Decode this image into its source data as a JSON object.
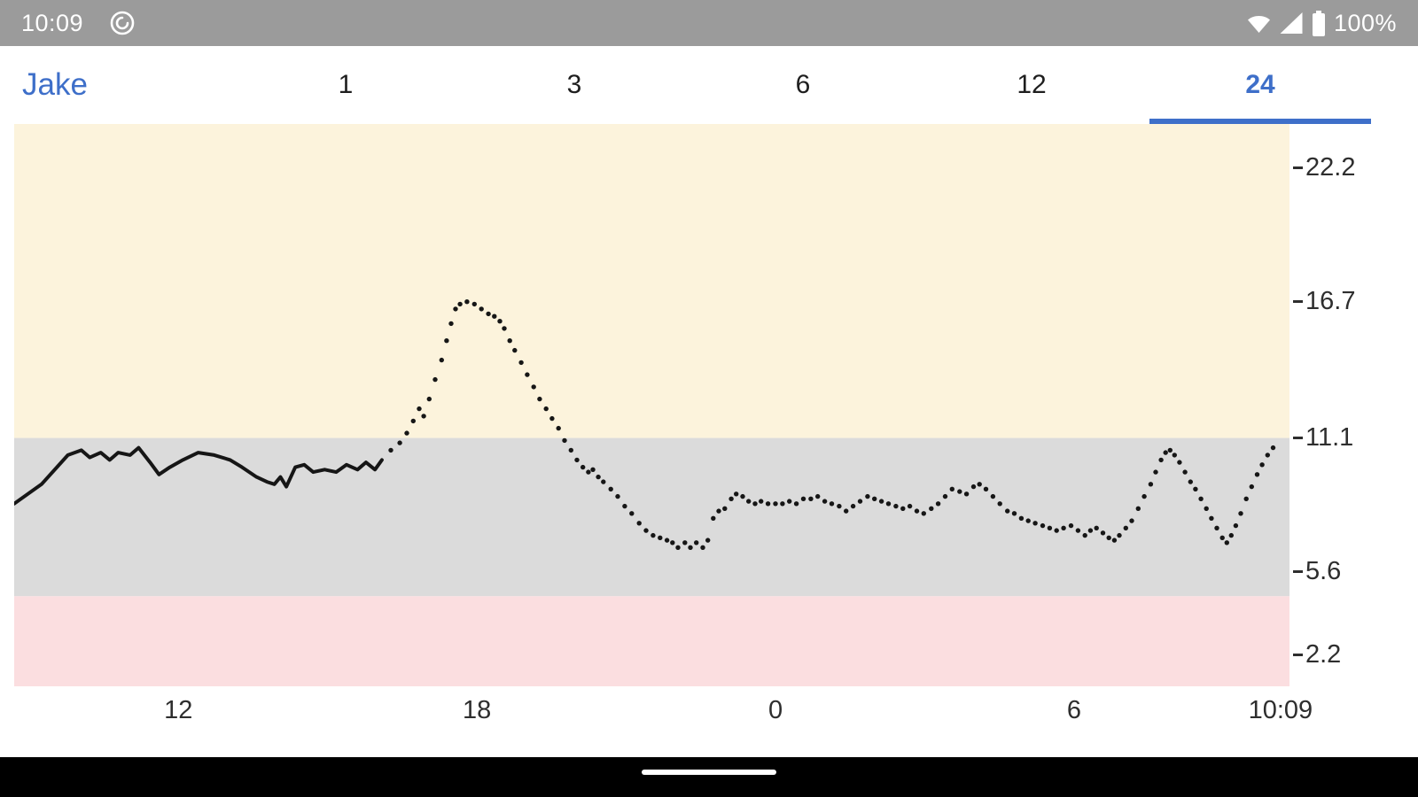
{
  "colors": {
    "accent": "#3e6fc9",
    "status_bar_bg": "#9b9b9b",
    "band_high": "#fcf3dc",
    "band_in_range": "#dbdbdb",
    "band_low": "#fbdee0",
    "series_color": "#161616",
    "nav_bar_bg": "#000000"
  },
  "status_bar": {
    "time": "10:09",
    "battery_percent": "100%",
    "icons": [
      "app-notification-icon",
      "wifi-icon",
      "cellular-signal-icon",
      "battery-icon"
    ]
  },
  "tab_bar": {
    "label": "Jake",
    "tabs": [
      {
        "label": "1",
        "selected": false
      },
      {
        "label": "3",
        "selected": false
      },
      {
        "label": "6",
        "selected": false
      },
      {
        "label": "12",
        "selected": false
      },
      {
        "label": "24",
        "selected": true
      }
    ]
  },
  "chart_data": {
    "type": "scatter",
    "title": "",
    "xlabel": "",
    "ylabel": "",
    "xlim": [
      8.7,
      34.33
    ],
    "ylim": [
      0.9,
      24.0
    ],
    "grid": false,
    "x_ticks": [
      {
        "t": 12,
        "label": "12"
      },
      {
        "t": 18,
        "label": "18"
      },
      {
        "t": 24,
        "label": "0"
      },
      {
        "t": 30,
        "label": "6"
      },
      {
        "t": 34.15,
        "label": "10:09"
      }
    ],
    "y_ticks": [
      22.2,
      16.7,
      11.1,
      5.6,
      2.2
    ],
    "bands": [
      {
        "name": "high",
        "from": 11.1,
        "to": 24.0,
        "color": "#fcf3dc"
      },
      {
        "name": "in-range",
        "from": 4.6,
        "to": 11.1,
        "color": "#dbdbdb"
      },
      {
        "name": "low",
        "from": 0.9,
        "to": 4.6,
        "color": "#fbdee0"
      }
    ],
    "series": [
      {
        "name": "glucose-history-line",
        "style": "line",
        "points": [
          [
            8.7,
            8.4
          ],
          [
            9.25,
            9.2
          ],
          [
            9.78,
            10.4
          ],
          [
            10.05,
            10.6
          ],
          [
            10.22,
            10.3
          ],
          [
            10.44,
            10.5
          ],
          [
            10.62,
            10.2
          ],
          [
            10.79,
            10.5
          ],
          [
            11.03,
            10.4
          ],
          [
            11.2,
            10.7
          ],
          [
            11.43,
            10.1
          ],
          [
            11.61,
            9.6
          ],
          [
            11.83,
            9.9
          ],
          [
            12.09,
            10.2
          ],
          [
            12.4,
            10.5
          ],
          [
            12.72,
            10.4
          ],
          [
            13.04,
            10.2
          ],
          [
            13.28,
            9.9
          ],
          [
            13.57,
            9.5
          ],
          [
            13.78,
            9.3
          ],
          [
            13.93,
            9.2
          ],
          [
            14.05,
            9.5
          ],
          [
            14.17,
            9.1
          ],
          [
            14.35,
            9.9
          ],
          [
            14.53,
            10.0
          ],
          [
            14.71,
            9.7
          ],
          [
            14.94,
            9.8
          ],
          [
            15.17,
            9.7
          ],
          [
            15.38,
            10.0
          ],
          [
            15.6,
            9.8
          ],
          [
            15.77,
            10.1
          ],
          [
            15.95,
            9.8
          ],
          [
            16.09,
            10.2
          ]
        ]
      },
      {
        "name": "glucose-readings",
        "style": "dots",
        "points": [
          [
            16.27,
            10.6
          ],
          [
            16.45,
            10.9
          ],
          [
            16.59,
            11.3
          ],
          [
            16.72,
            11.8
          ],
          [
            16.84,
            12.3
          ],
          [
            16.93,
            12.0
          ],
          [
            17.04,
            12.7
          ],
          [
            17.16,
            13.5
          ],
          [
            17.29,
            14.3
          ],
          [
            17.39,
            15.1
          ],
          [
            17.48,
            15.8
          ],
          [
            17.57,
            16.4
          ],
          [
            17.66,
            16.6
          ],
          [
            17.8,
            16.7
          ],
          [
            17.95,
            16.6
          ],
          [
            18.09,
            16.4
          ],
          [
            18.23,
            16.2
          ],
          [
            18.35,
            16.1
          ],
          [
            18.46,
            15.9
          ],
          [
            18.55,
            15.6
          ],
          [
            18.66,
            15.1
          ],
          [
            18.76,
            14.7
          ],
          [
            18.89,
            14.2
          ],
          [
            19.01,
            13.7
          ],
          [
            19.14,
            13.2
          ],
          [
            19.26,
            12.7
          ],
          [
            19.39,
            12.3
          ],
          [
            19.51,
            11.9
          ],
          [
            19.64,
            11.5
          ],
          [
            19.76,
            11.0
          ],
          [
            19.89,
            10.6
          ],
          [
            20.01,
            10.2
          ],
          [
            20.13,
            9.9
          ],
          [
            20.24,
            9.7
          ],
          [
            20.33,
            9.8
          ],
          [
            20.44,
            9.5
          ],
          [
            20.54,
            9.3
          ],
          [
            20.69,
            9.0
          ],
          [
            20.83,
            8.7
          ],
          [
            20.97,
            8.3
          ],
          [
            21.11,
            8.0
          ],
          [
            21.26,
            7.6
          ],
          [
            21.4,
            7.3
          ],
          [
            21.54,
            7.1
          ],
          [
            21.68,
            7.0
          ],
          [
            21.82,
            6.9
          ],
          [
            21.93,
            6.8
          ],
          [
            22.04,
            6.6
          ],
          [
            22.18,
            6.8
          ],
          [
            22.29,
            6.6
          ],
          [
            22.41,
            6.8
          ],
          [
            22.54,
            6.6
          ],
          [
            22.64,
            6.9
          ],
          [
            22.75,
            7.8
          ],
          [
            22.86,
            8.1
          ],
          [
            22.98,
            8.2
          ],
          [
            23.11,
            8.6
          ],
          [
            23.21,
            8.8
          ],
          [
            23.34,
            8.7
          ],
          [
            23.46,
            8.5
          ],
          [
            23.59,
            8.4
          ],
          [
            23.71,
            8.5
          ],
          [
            23.85,
            8.4
          ],
          [
            24.0,
            8.4
          ],
          [
            24.14,
            8.4
          ],
          [
            24.28,
            8.5
          ],
          [
            24.42,
            8.4
          ],
          [
            24.56,
            8.6
          ],
          [
            24.71,
            8.6
          ],
          [
            24.85,
            8.7
          ],
          [
            24.99,
            8.5
          ],
          [
            25.13,
            8.4
          ],
          [
            25.28,
            8.3
          ],
          [
            25.42,
            8.1
          ],
          [
            25.56,
            8.3
          ],
          [
            25.7,
            8.5
          ],
          [
            25.85,
            8.7
          ],
          [
            25.99,
            8.6
          ],
          [
            26.13,
            8.5
          ],
          [
            26.27,
            8.4
          ],
          [
            26.42,
            8.3
          ],
          [
            26.56,
            8.2
          ],
          [
            26.7,
            8.3
          ],
          [
            26.84,
            8.1
          ],
          [
            26.98,
            8.0
          ],
          [
            27.13,
            8.2
          ],
          [
            27.27,
            8.4
          ],
          [
            27.41,
            8.7
          ],
          [
            27.55,
            9.0
          ],
          [
            27.7,
            8.9
          ],
          [
            27.84,
            8.8
          ],
          [
            27.98,
            9.1
          ],
          [
            28.1,
            9.2
          ],
          [
            28.23,
            9.0
          ],
          [
            28.37,
            8.7
          ],
          [
            28.51,
            8.4
          ],
          [
            28.66,
            8.1
          ],
          [
            28.8,
            8.0
          ],
          [
            28.94,
            7.8
          ],
          [
            29.08,
            7.7
          ],
          [
            29.22,
            7.6
          ],
          [
            29.37,
            7.5
          ],
          [
            29.51,
            7.4
          ],
          [
            29.65,
            7.3
          ],
          [
            29.79,
            7.4
          ],
          [
            29.94,
            7.5
          ],
          [
            30.08,
            7.3
          ],
          [
            30.22,
            7.1
          ],
          [
            30.33,
            7.3
          ],
          [
            30.45,
            7.4
          ],
          [
            30.58,
            7.2
          ],
          [
            30.7,
            7.0
          ],
          [
            30.81,
            6.9
          ],
          [
            30.91,
            7.1
          ],
          [
            31.04,
            7.4
          ],
          [
            31.16,
            7.7
          ],
          [
            31.29,
            8.2
          ],
          [
            31.41,
            8.7
          ],
          [
            31.54,
            9.2
          ],
          [
            31.64,
            9.7
          ],
          [
            31.75,
            10.2
          ],
          [
            31.84,
            10.5
          ],
          [
            31.93,
            10.6
          ],
          [
            32.02,
            10.4
          ],
          [
            32.12,
            10.1
          ],
          [
            32.23,
            9.7
          ],
          [
            32.34,
            9.3
          ],
          [
            32.44,
            9.0
          ],
          [
            32.55,
            8.6
          ],
          [
            32.66,
            8.2
          ],
          [
            32.76,
            7.8
          ],
          [
            32.87,
            7.4
          ],
          [
            32.98,
            7.0
          ],
          [
            33.07,
            6.8
          ],
          [
            33.16,
            7.1
          ],
          [
            33.25,
            7.5
          ],
          [
            33.35,
            8.0
          ],
          [
            33.46,
            8.6
          ],
          [
            33.57,
            9.1
          ],
          [
            33.68,
            9.6
          ],
          [
            33.78,
            10.0
          ],
          [
            33.89,
            10.4
          ],
          [
            34.0,
            10.7
          ]
        ]
      }
    ]
  },
  "nav_bar": {
    "home_indicator": true
  }
}
